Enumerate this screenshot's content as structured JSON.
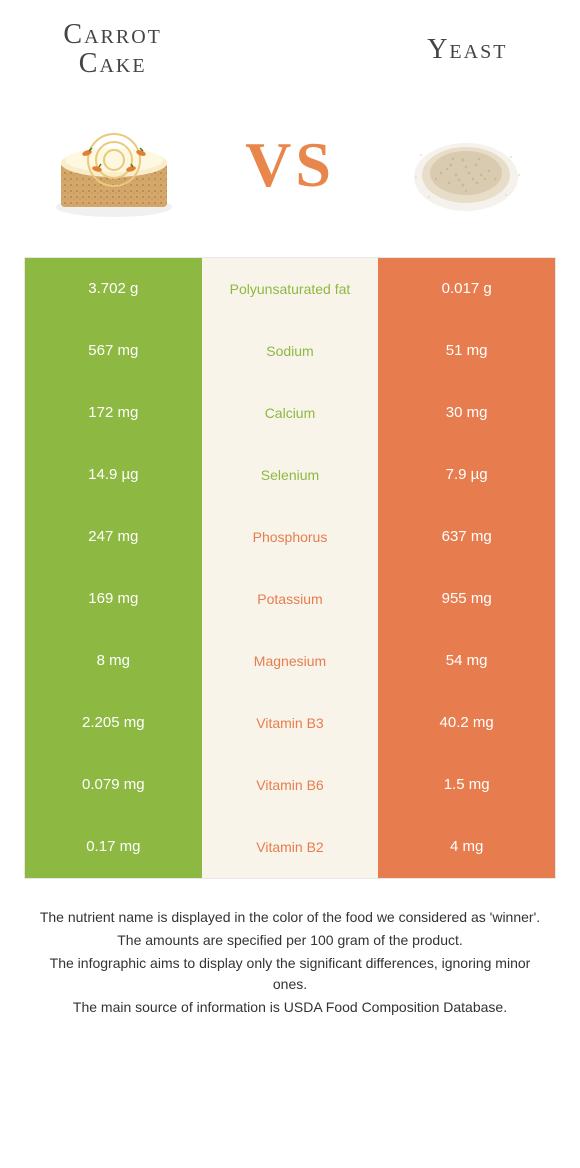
{
  "colors": {
    "left": "#8db942",
    "right": "#e77d4f",
    "mid_bg": "#f9f4e9",
    "white": "#ffffff",
    "text": "#333333"
  },
  "fonts": {
    "title_family": "Times New Roman, serif",
    "title_size": 28,
    "vs_size": 64,
    "cell_size": 15,
    "footnote_size": 14
  },
  "header": {
    "left_title": "Carrot\nCake",
    "right_title": "Yeast",
    "vs": "VS"
  },
  "rows": [
    {
      "left": "3.702 g",
      "label": "Polyunsaturated fat",
      "right": "0.017 g",
      "winner": "left"
    },
    {
      "left": "567 mg",
      "label": "Sodium",
      "right": "51 mg",
      "winner": "left"
    },
    {
      "left": "172 mg",
      "label": "Calcium",
      "right": "30 mg",
      "winner": "left"
    },
    {
      "left": "14.9 µg",
      "label": "Selenium",
      "right": "7.9 µg",
      "winner": "left"
    },
    {
      "left": "247 mg",
      "label": "Phosphorus",
      "right": "637 mg",
      "winner": "right"
    },
    {
      "left": "169 mg",
      "label": "Potassium",
      "right": "955 mg",
      "winner": "right"
    },
    {
      "left": "8 mg",
      "label": "Magnesium",
      "right": "54 mg",
      "winner": "right"
    },
    {
      "left": "2.205 mg",
      "label": "Vitamin B3",
      "right": "40.2 mg",
      "winner": "right"
    },
    {
      "left": "0.079 mg",
      "label": "Vitamin B6",
      "right": "1.5 mg",
      "winner": "right"
    },
    {
      "left": "0.17 mg",
      "label": "Vitamin B2",
      "right": "4 mg",
      "winner": "right"
    }
  ],
  "footnotes": [
    "The nutrient name is displayed in the color of the food we considered as 'winner'.",
    "The amounts are specified per 100 gram of the product.",
    "The infographic aims to display only the significant differences, ignoring minor ones.",
    "The main source of information is USDA Food Composition Database."
  ]
}
